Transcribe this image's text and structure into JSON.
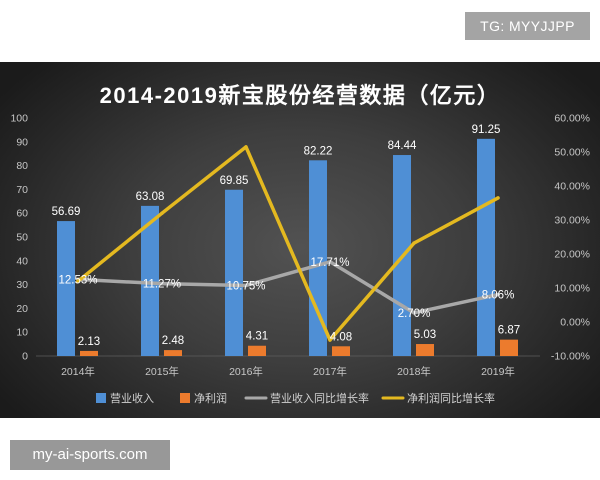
{
  "badges": {
    "top_right": "TG: MYYJJPP",
    "bottom_left": "my-ai-sports.com"
  },
  "chart_data": {
    "type": "bar",
    "title": "2014-2019新宝股份经营数据（亿元）",
    "categories": [
      "2014年",
      "2015年",
      "2016年",
      "2017年",
      "2018年",
      "2019年"
    ],
    "series": [
      {
        "name": "营业收入",
        "type": "bar",
        "axis": "left",
        "color": "#4f8fd5",
        "values": [
          56.69,
          63.08,
          69.85,
          82.22,
          84.44,
          91.25
        ],
        "data_labels": [
          "56.69",
          "63.08",
          "69.85",
          "82.22",
          "84.44",
          "91.25"
        ]
      },
      {
        "name": "净利润",
        "type": "bar",
        "axis": "left",
        "color": "#ec7b2d",
        "values": [
          2.13,
          2.48,
          4.31,
          4.08,
          5.03,
          6.87
        ],
        "data_labels": [
          "2.13",
          "2.48",
          "4.31",
          "4.08",
          "5.03",
          "6.87"
        ]
      },
      {
        "name": "营业收入同比增长率",
        "type": "line",
        "axis": "right",
        "color": "#a8a8a8",
        "values": [
          12.53,
          11.27,
          10.75,
          17.71,
          2.7,
          8.06
        ],
        "data_labels": [
          "12.53%",
          "11.27%",
          "10.75%",
          "17.71%",
          "2.70%",
          "8.06%"
        ]
      },
      {
        "name": "净利润同比增长率",
        "type": "line",
        "axis": "right",
        "color": "#e4b920",
        "values": [
          12.0,
          32.0,
          51.5,
          -5.3,
          23.2,
          36.5
        ]
      }
    ],
    "y_left": {
      "range": [
        0,
        100
      ],
      "tick_labels": [
        "0",
        "10",
        "20",
        "30",
        "40",
        "50",
        "60",
        "70",
        "80",
        "90",
        "100"
      ]
    },
    "y_right": {
      "range": [
        -10,
        60
      ],
      "tick_labels": [
        "-10.00%",
        "0.00%",
        "10.00%",
        "20.00%",
        "30.00%",
        "40.00%",
        "50.00%",
        "60.00%"
      ]
    },
    "grid": false,
    "legend": "bottom"
  }
}
